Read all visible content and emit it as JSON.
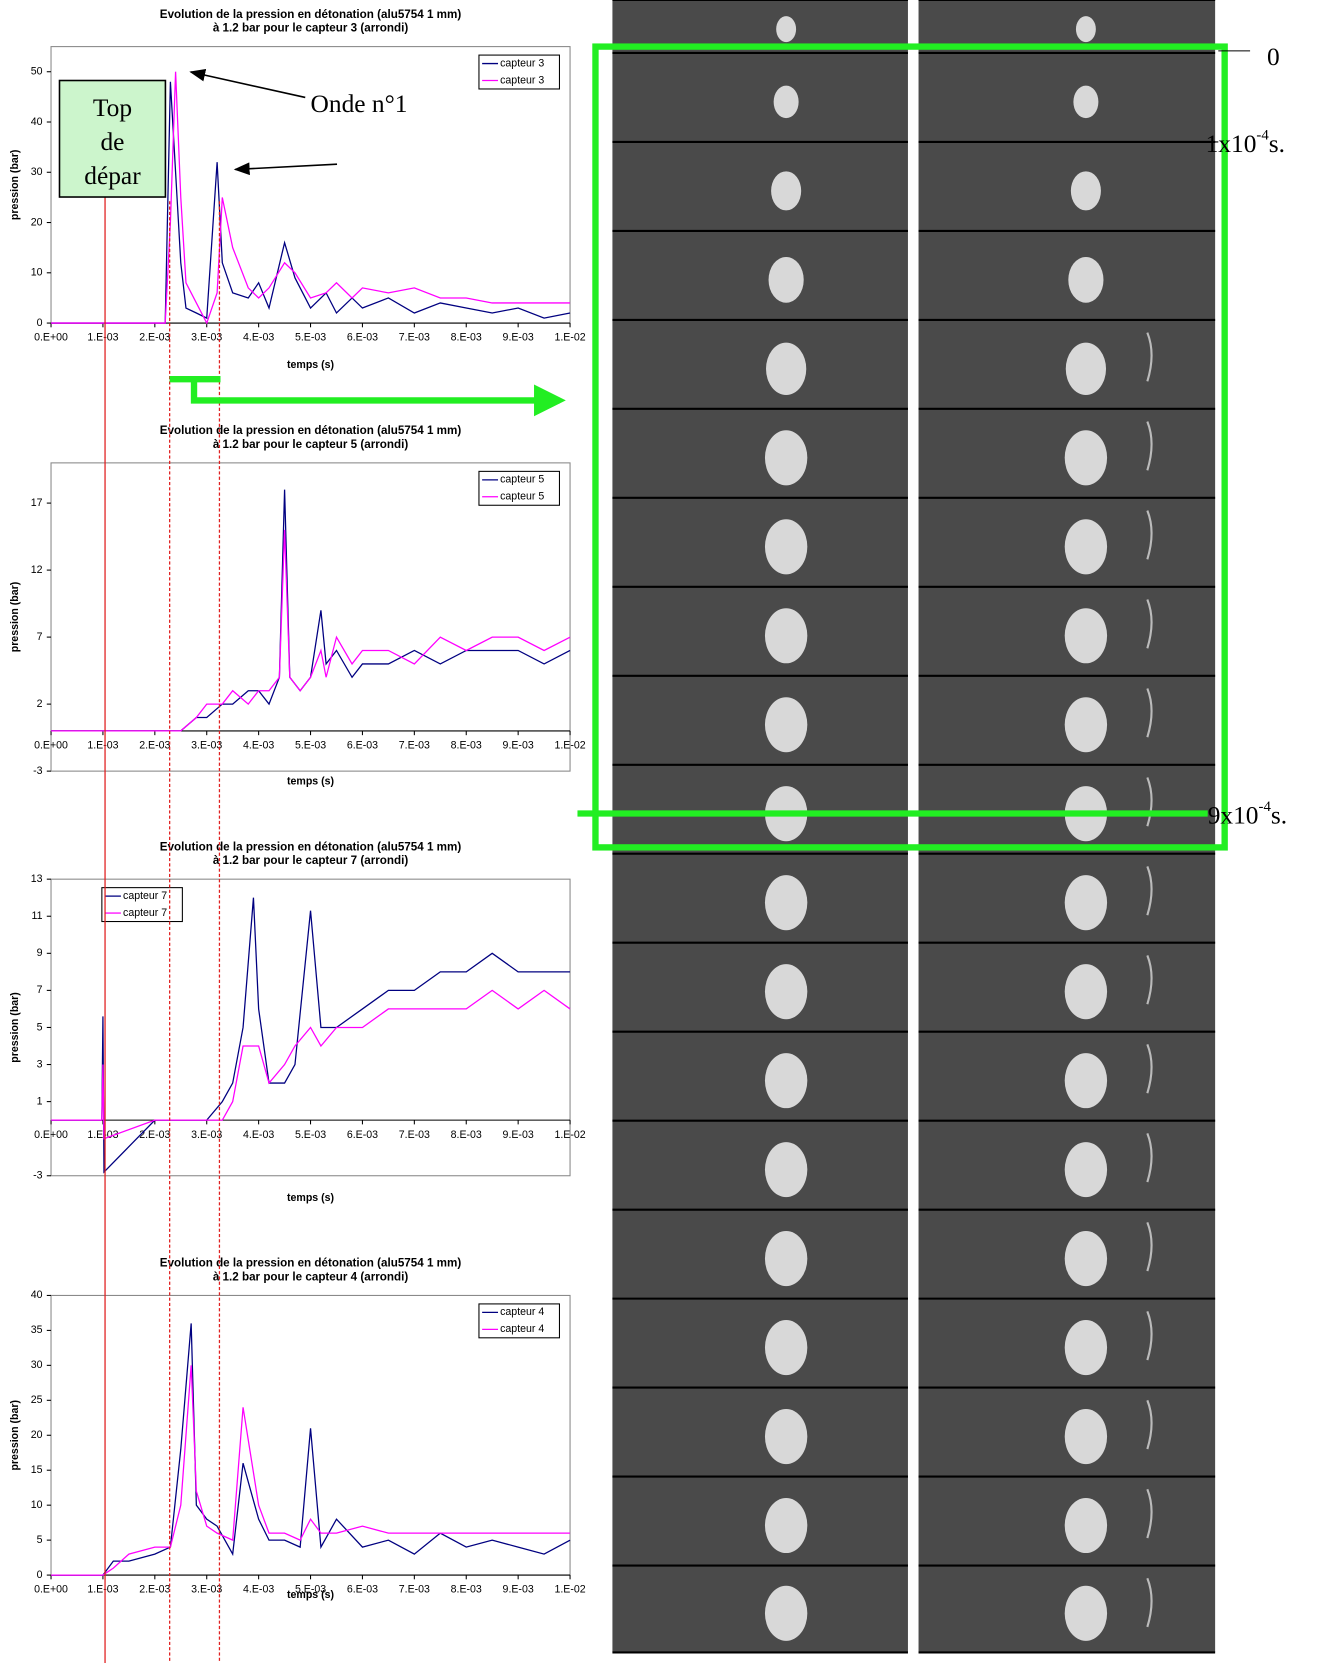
{
  "chart_data": [
    {
      "type": "line",
      "title": "Evolution de la pression en détonation (alu5754 1 mm)",
      "subtitle": "à 1.2 bar pour le capteur 3 (arrondi)",
      "x_label": "temps (s)",
      "y_label": "pression (bar)",
      "legend": "upper right",
      "x": [
        0,
        0.001,
        0.002,
        0.0022,
        0.0023,
        0.0024,
        0.0025,
        0.0026,
        0.0028,
        0.003,
        0.0032,
        0.0033,
        0.0035,
        0.0038,
        0.004,
        0.0042,
        0.0045,
        0.0047,
        0.005,
        0.0053,
        0.0055,
        0.0058,
        0.006,
        0.0065,
        0.007,
        0.0075,
        0.008,
        0.0085,
        0.009,
        0.0095,
        0.01
      ],
      "series": [
        {
          "name": "capteur 3",
          "color": "#000080",
          "values": [
            0,
            0,
            0,
            0,
            48,
            30,
            12,
            3,
            2,
            1,
            32,
            12,
            6,
            5,
            8,
            3,
            16,
            9,
            3,
            6,
            2,
            5,
            3,
            5,
            2,
            4,
            3,
            2,
            3,
            1,
            2
          ]
        },
        {
          "name": "capteur 3",
          "color": "#ff00ff",
          "values": [
            0,
            0,
            0,
            0,
            20,
            50,
            25,
            8,
            4,
            0,
            6,
            25,
            15,
            7,
            5,
            7,
            12,
            10,
            5,
            6,
            8,
            5,
            7,
            6,
            7,
            5,
            5,
            4,
            4,
            4,
            4
          ]
        }
      ],
      "xlim": [
        0,
        0.01
      ],
      "ylim": [
        0,
        55
      ],
      "xticks": [
        {
          "value": 0,
          "label": "0.E+00"
        },
        {
          "value": 0.001,
          "label": "1.E-03"
        },
        {
          "value": 0.002,
          "label": "2.E-03"
        },
        {
          "value": 0.003,
          "label": "3.E-03"
        },
        {
          "value": 0.004,
          "label": "4.E-03"
        },
        {
          "value": 0.005,
          "label": "5.E-03"
        },
        {
          "value": 0.006,
          "label": "6.E-03"
        },
        {
          "value": 0.007,
          "label": "7.E-03"
        },
        {
          "value": 0.008,
          "label": "8.E-03"
        },
        {
          "value": 0.009,
          "label": "9.E-03"
        },
        {
          "value": 0.01,
          "label": "1.E-02"
        }
      ],
      "yticks": [
        0,
        10,
        20,
        30,
        40,
        50
      ]
    },
    {
      "type": "line",
      "title": "Evolution de la pression en détonation (alu5754 1 mm)",
      "subtitle": "à 1.2 bar pour le capteur 5 (arrondi)",
      "x_label": "temps (s)",
      "y_label": "pression (bar)",
      "legend": "upper right",
      "x": [
        0,
        0.001,
        0.002,
        0.0025,
        0.0028,
        0.003,
        0.0033,
        0.0035,
        0.0038,
        0.004,
        0.0042,
        0.0044,
        0.0045,
        0.0046,
        0.0048,
        0.005,
        0.0052,
        0.0053,
        0.0055,
        0.0058,
        0.006,
        0.0065,
        0.007,
        0.0075,
        0.008,
        0.0085,
        0.009,
        0.0095,
        0.01
      ],
      "series": [
        {
          "name": "capteur 5",
          "color": "#000080",
          "values": [
            0,
            0,
            0,
            0,
            1,
            1,
            2,
            2,
            3,
            3,
            2,
            4,
            18,
            4,
            3,
            4,
            9,
            5,
            6,
            4,
            5,
            5,
            6,
            5,
            6,
            6,
            6,
            5,
            6
          ]
        },
        {
          "name": "capteur 5",
          "color": "#ff00ff",
          "values": [
            0,
            0,
            0,
            0,
            1,
            2,
            2,
            3,
            2,
            3,
            3,
            4,
            15,
            4,
            3,
            4,
            6,
            4,
            7,
            5,
            6,
            6,
            5,
            7,
            6,
            7,
            7,
            6,
            7
          ]
        }
      ],
      "xlim": [
        0,
        0.01
      ],
      "ylim": [
        -3,
        20
      ],
      "xticks": [
        {
          "value": 0,
          "label": "0.E+00"
        },
        {
          "value": 0.001,
          "label": "1.E-03"
        },
        {
          "value": 0.002,
          "label": "2.E-03"
        },
        {
          "value": 0.003,
          "label": "3.E-03"
        },
        {
          "value": 0.004,
          "label": "4.E-03"
        },
        {
          "value": 0.005,
          "label": "5.E-03"
        },
        {
          "value": 0.006,
          "label": "6.E-03"
        },
        {
          "value": 0.007,
          "label": "7.E-03"
        },
        {
          "value": 0.008,
          "label": "8.E-03"
        },
        {
          "value": 0.009,
          "label": "9.E-03"
        },
        {
          "value": 0.01,
          "label": "1.E-02"
        }
      ],
      "yticks": [
        -3,
        2,
        7,
        12,
        17
      ]
    },
    {
      "type": "line",
      "title": "Evolution de la pression en détonation (alu5754 1 mm)",
      "subtitle": "à 1.2 bar pour le capteur 7 (arrondi)",
      "x_label": "temps (s)",
      "y_label": "pression (bar)",
      "legend": "upper left",
      "x": [
        0,
        0.00098,
        0.001,
        0.00102,
        0.002,
        0.0025,
        0.003,
        0.0033,
        0.0035,
        0.0037,
        0.0039,
        0.004,
        0.0042,
        0.0045,
        0.0047,
        0.005,
        0.0052,
        0.0055,
        0.006,
        0.0065,
        0.007,
        0.0075,
        0.008,
        0.0085,
        0.009,
        0.0095,
        0.01
      ],
      "series": [
        {
          "name": "capteur 7",
          "color": "#000080",
          "values": [
            0,
            0,
            5.6,
            -2.8,
            0,
            0,
            0,
            1,
            2,
            5,
            12,
            6,
            2,
            2,
            3,
            11.3,
            5,
            5,
            6,
            7,
            7,
            8,
            8,
            9,
            8,
            8,
            8
          ]
        },
        {
          "name": "capteur 7",
          "color": "#ff00ff",
          "values": [
            0,
            0,
            3,
            -1,
            0,
            0,
            0,
            0,
            1,
            4,
            4,
            4,
            2,
            3,
            4,
            5,
            4,
            5,
            5,
            6,
            6,
            6,
            6,
            7,
            6,
            7,
            6
          ]
        }
      ],
      "xlim": [
        0,
        0.01
      ],
      "ylim": [
        -3,
        13
      ],
      "xticks": [
        {
          "value": 0,
          "label": "0.E+00"
        },
        {
          "value": 0.001,
          "label": "1.E-03"
        },
        {
          "value": 0.002,
          "label": "2.E-03"
        },
        {
          "value": 0.003,
          "label": "3.E-03"
        },
        {
          "value": 0.004,
          "label": "4.E-03"
        },
        {
          "value": 0.005,
          "label": "5.E-03"
        },
        {
          "value": 0.006,
          "label": "6.E-03"
        },
        {
          "value": 0.007,
          "label": "7.E-03"
        },
        {
          "value": 0.008,
          "label": "8.E-03"
        },
        {
          "value": 0.009,
          "label": "9.E-03"
        },
        {
          "value": 0.01,
          "label": "1.E-02"
        }
      ],
      "yticks": [
        -3,
        1,
        3,
        5,
        7,
        9,
        11,
        13
      ]
    },
    {
      "type": "line",
      "title": "Evolution de la pression en détonation (alu5754 1 mm)",
      "subtitle": "à 1.2 bar pour le capteur 4 (arrondi)",
      "x_label": "temps (s)",
      "y_label": "pression (bar)",
      "legend": "upper right",
      "x": [
        0,
        0.001,
        0.0012,
        0.0015,
        0.002,
        0.0023,
        0.0025,
        0.0027,
        0.0028,
        0.003,
        0.0032,
        0.0035,
        0.0037,
        0.004,
        0.0042,
        0.0045,
        0.0048,
        0.005,
        0.0052,
        0.0055,
        0.006,
        0.0065,
        0.007,
        0.0075,
        0.008,
        0.0085,
        0.009,
        0.0095,
        0.01
      ],
      "series": [
        {
          "name": "capteur 4",
          "color": "#000080",
          "values": [
            0,
            0,
            2,
            2,
            3,
            4,
            18,
            36,
            10,
            8,
            7,
            3,
            16,
            8,
            5,
            5,
            4,
            21,
            4,
            8,
            4,
            5,
            3,
            6,
            4,
            5,
            4,
            3,
            5
          ]
        },
        {
          "name": "capteur 4",
          "color": "#ff00ff",
          "values": [
            0,
            0,
            1,
            3,
            4,
            4,
            10,
            30,
            12,
            7,
            6,
            5,
            24,
            10,
            6,
            6,
            5,
            8,
            6,
            6,
            7,
            6,
            6,
            6,
            6,
            6,
            6,
            6,
            6
          ]
        }
      ],
      "xlim": [
        0,
        0.01
      ],
      "ylim": [
        0,
        40
      ],
      "xticks": [
        {
          "value": 0,
          "label": "0.E+00"
        },
        {
          "value": 0.001,
          "label": "1.E-03"
        },
        {
          "value": 0.002,
          "label": "2.E-03"
        },
        {
          "value": 0.003,
          "label": "3.E-03"
        },
        {
          "value": 0.004,
          "label": "4.E-03"
        },
        {
          "value": 0.005,
          "label": "5.E-03"
        },
        {
          "value": 0.006,
          "label": "6.E-03"
        },
        {
          "value": 0.007,
          "label": "7.E-03"
        },
        {
          "value": 0.008,
          "label": "8.E-03"
        },
        {
          "value": 0.009,
          "label": "9.E-03"
        },
        {
          "value": 0.01,
          "label": "1.E-02"
        }
      ],
      "yticks": [
        0,
        5,
        10,
        15,
        20,
        25,
        30,
        35,
        40
      ]
    }
  ],
  "annotations": {
    "start": [
      "Top",
      "de",
      "dépar"
    ],
    "wave": "Onde n°1",
    "t0": "0",
    "t1": {
      "base": "1x10",
      "exp": "-4",
      "unit": "s."
    },
    "t9": {
      "base": "9x10",
      "exp": "-4",
      "unit": "s."
    }
  }
}
